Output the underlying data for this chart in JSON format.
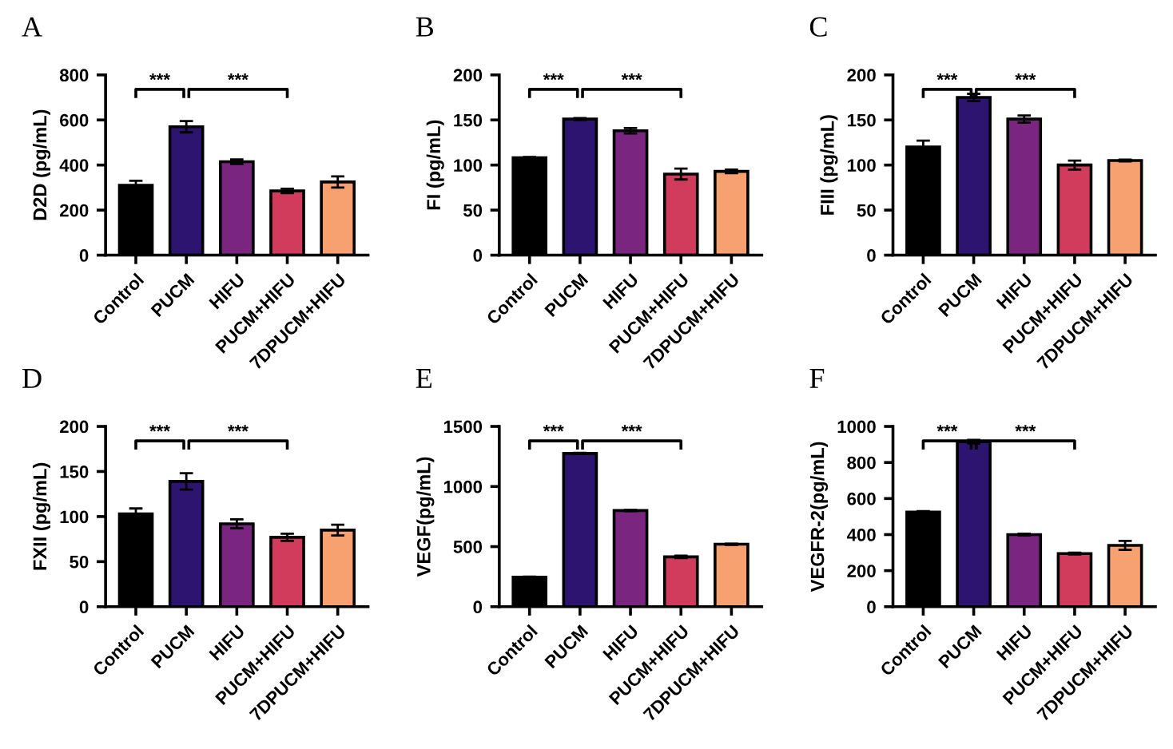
{
  "chart_data": [
    {
      "type": "bar",
      "title": "A",
      "ylabel": "D2D (pg/mL)",
      "categories": [
        "Control",
        "PUCM",
        "HIFU",
        "PUCM+HIFU",
        "7DPUCM+HIFU"
      ],
      "values": [
        310,
        570,
        415,
        285,
        325
      ],
      "errors": [
        20,
        25,
        10,
        10,
        25
      ],
      "colors": [
        "#000000",
        "#2d1470",
        "#7a2580",
        "#d23c5c",
        "#f7a070"
      ],
      "ylim": [
        0,
        800
      ],
      "yticks": [
        0,
        200,
        400,
        600,
        800
      ],
      "grid": false,
      "legend": false,
      "annotations": [
        "***",
        "***"
      ]
    },
    {
      "type": "bar",
      "title": "B",
      "ylabel": "FI (pg/mL)",
      "categories": [
        "Control",
        "PUCM",
        "HIFU",
        "PUCM+HIFU",
        "7DPUCM+HIFU"
      ],
      "values": [
        108,
        151,
        138,
        90,
        93
      ],
      "errors": [
        1,
        1,
        3,
        6,
        2
      ],
      "colors": [
        "#000000",
        "#2d1470",
        "#7a2580",
        "#d23c5c",
        "#f7a070"
      ],
      "ylim": [
        0,
        200
      ],
      "yticks": [
        0,
        50,
        100,
        150,
        200
      ],
      "grid": false,
      "legend": false,
      "annotations": [
        "***",
        "***"
      ]
    },
    {
      "type": "bar",
      "title": "C",
      "ylabel": "FIII (pg/mL)",
      "categories": [
        "Control",
        "PUCM",
        "HIFU",
        "PUCM+HIFU",
        "7DPUCM+HIFU"
      ],
      "values": [
        120,
        175,
        151,
        100,
        105
      ],
      "errors": [
        7,
        4,
        4,
        5,
        1
      ],
      "colors": [
        "#000000",
        "#2d1470",
        "#7a2580",
        "#d23c5c",
        "#f7a070"
      ],
      "ylim": [
        0,
        200
      ],
      "yticks": [
        0,
        50,
        100,
        150,
        200
      ],
      "grid": false,
      "legend": false,
      "annotations": [
        "***",
        "***"
      ]
    },
    {
      "type": "bar",
      "title": "D",
      "ylabel": "FXII (pg/mL)",
      "categories": [
        "Control",
        "PUCM",
        "HIFU",
        "PUCM+HIFU",
        "7DPUCM+HIFU"
      ],
      "values": [
        103,
        139,
        92,
        77,
        85
      ],
      "errors": [
        6,
        9,
        5,
        4,
        6
      ],
      "colors": [
        "#000000",
        "#2d1470",
        "#7a2580",
        "#d23c5c",
        "#f7a070"
      ],
      "ylim": [
        0,
        200
      ],
      "yticks": [
        0,
        50,
        100,
        150,
        200
      ],
      "grid": false,
      "legend": false,
      "annotations": [
        "***",
        "***"
      ]
    },
    {
      "type": "bar",
      "title": "E",
      "ylabel": "VEGF(pg/mL)",
      "categories": [
        "Control",
        "PUCM",
        "HIFU",
        "PUCM+HIFU",
        "7DPUCM+HIFU"
      ],
      "values": [
        245,
        1275,
        800,
        415,
        520
      ],
      "errors": [
        5,
        5,
        5,
        10,
        5
      ],
      "colors": [
        "#000000",
        "#2d1470",
        "#7a2580",
        "#d23c5c",
        "#f7a070"
      ],
      "ylim": [
        0,
        1500
      ],
      "yticks": [
        0,
        500,
        1000,
        1500
      ],
      "grid": false,
      "legend": false,
      "annotations": [
        "***",
        "***"
      ]
    },
    {
      "type": "bar",
      "title": "F",
      "ylabel": "VEGFR-2(pg/mL)",
      "categories": [
        "Control",
        "PUCM",
        "HIFU",
        "PUCM+HIFU",
        "7DPUCM+HIFU"
      ],
      "values": [
        525,
        915,
        400,
        295,
        340
      ],
      "errors": [
        5,
        10,
        5,
        5,
        25
      ],
      "colors": [
        "#000000",
        "#2d1470",
        "#7a2580",
        "#d23c5c",
        "#f7a070"
      ],
      "ylim": [
        0,
        1000
      ],
      "yticks": [
        0,
        200,
        400,
        600,
        800,
        1000
      ],
      "grid": false,
      "legend": false,
      "annotations": [
        "***",
        "***"
      ]
    }
  ]
}
